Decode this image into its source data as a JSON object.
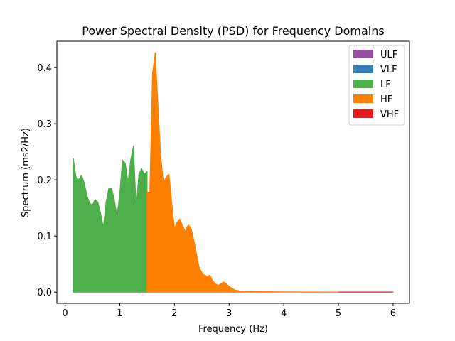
{
  "chart_data": {
    "type": "area",
    "title": "Power Spectral Density (PSD) for Frequency Domains",
    "xlabel": "Frequency (Hz)",
    "ylabel": "Spectrum (ms2/Hz)",
    "xlim": [
      -0.15,
      6.3
    ],
    "ylim": [
      -0.02,
      0.447
    ],
    "x_ticks": [
      0,
      1,
      2,
      3,
      4,
      5,
      6
    ],
    "x_tick_labels": [
      "0",
      "1",
      "2",
      "3",
      "4",
      "5",
      "6"
    ],
    "y_ticks": [
      0.0,
      0.1,
      0.2,
      0.3,
      0.4
    ],
    "y_tick_labels": [
      "0.0",
      "0.1",
      "0.2",
      "0.3",
      "0.4"
    ],
    "grid": false,
    "legend_position": "top-right",
    "series": [
      {
        "name": "ULF",
        "color": "#984ea3",
        "x": [],
        "y": []
      },
      {
        "name": "VLF",
        "color": "#377eb8",
        "x": [],
        "y": []
      },
      {
        "name": "LF",
        "color": "#4daf4a",
        "x": [
          0.15,
          0.2,
          0.25,
          0.3,
          0.35,
          0.4,
          0.45,
          0.5,
          0.55,
          0.6,
          0.65,
          0.7,
          0.75,
          0.8,
          0.85,
          0.9,
          0.95,
          1.0,
          1.05,
          1.1,
          1.15,
          1.2,
          1.25,
          1.3,
          1.35,
          1.4,
          1.45,
          1.5
        ],
        "y": [
          0.238,
          0.205,
          0.2,
          0.208,
          0.195,
          0.172,
          0.158,
          0.155,
          0.165,
          0.16,
          0.14,
          0.115,
          0.16,
          0.185,
          0.185,
          0.165,
          0.135,
          0.175,
          0.235,
          0.23,
          0.195,
          0.235,
          0.26,
          0.15,
          0.21,
          0.22,
          0.21,
          0.215
        ]
      },
      {
        "name": "HF",
        "color": "#ff7f00",
        "x": [
          1.5,
          1.55,
          1.6,
          1.65,
          1.7,
          1.75,
          1.8,
          1.85,
          1.9,
          1.95,
          2.0,
          2.05,
          2.1,
          2.15,
          2.2,
          2.25,
          2.3,
          2.35,
          2.4,
          2.45,
          2.5,
          2.55,
          2.6,
          2.65,
          2.7,
          2.75,
          2.8,
          2.85,
          2.9,
          2.95,
          3.0,
          3.1,
          3.2,
          3.3,
          3.5,
          4.0,
          4.5,
          5.0
        ],
        "y": [
          0.178,
          0.178,
          0.39,
          0.427,
          0.33,
          0.24,
          0.195,
          0.205,
          0.21,
          0.16,
          0.113,
          0.125,
          0.13,
          0.118,
          0.108,
          0.12,
          0.115,
          0.095,
          0.07,
          0.045,
          0.035,
          0.03,
          0.028,
          0.03,
          0.02,
          0.015,
          0.012,
          0.015,
          0.018,
          0.015,
          0.01,
          0.004,
          0.002,
          0.0015,
          0.001,
          0.0005,
          0.0003,
          0.0002
        ]
      },
      {
        "name": "VHF",
        "color": "#e41a1c",
        "x": [
          5.0,
          5.5,
          6.0
        ],
        "y": [
          0.0002,
          0.0001,
          0.0001
        ]
      }
    ]
  }
}
